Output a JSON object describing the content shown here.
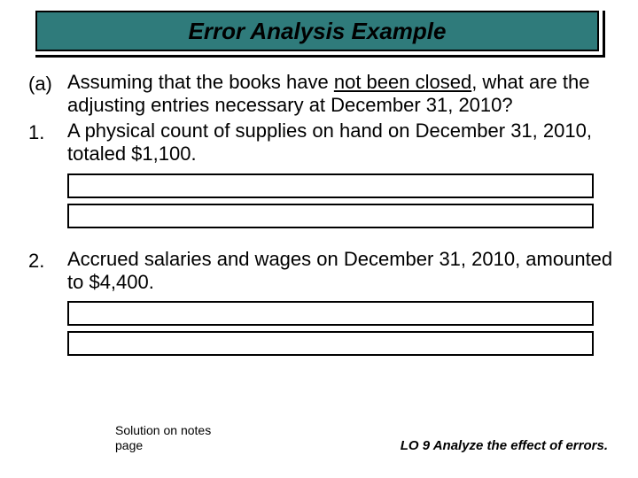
{
  "colors": {
    "title_bg": "#2f7b7b",
    "title_border": "#000000",
    "title_shadow": "#000000",
    "page_bg": "#ffffff",
    "text": "#000000",
    "box_border": "#000000"
  },
  "typography": {
    "title_fontsize": 26,
    "title_italic": true,
    "title_bold": true,
    "body_fontsize": 22,
    "footnote_fontsize": 14,
    "lo_fontsize": 15,
    "font_family": "Comic Sans MS"
  },
  "layout": {
    "slide_width": 720,
    "slide_height": 540,
    "title_width": 640,
    "title_height": 50,
    "entry_box_width": 590,
    "entry_box_height": 24,
    "entry_boxes_per_item": 2
  },
  "title": "Error Analysis Example",
  "question": {
    "marker": "(a)",
    "text_before_underline": "Assuming that the books have ",
    "underlined": "not been closed",
    "text_after_underline": ", what are the adjusting entries necessary at December 31, 2010?"
  },
  "items": [
    {
      "marker": "1.",
      "text": "A physical count of supplies on hand on December 31, 2010, totaled $1,100."
    },
    {
      "marker": "2.",
      "text": "Accrued salaries and wages on December 31, 2010, amounted to $4,400."
    }
  ],
  "footnote": "Solution on notes page",
  "learning_objective": "LO 9 Analyze the effect of errors."
}
